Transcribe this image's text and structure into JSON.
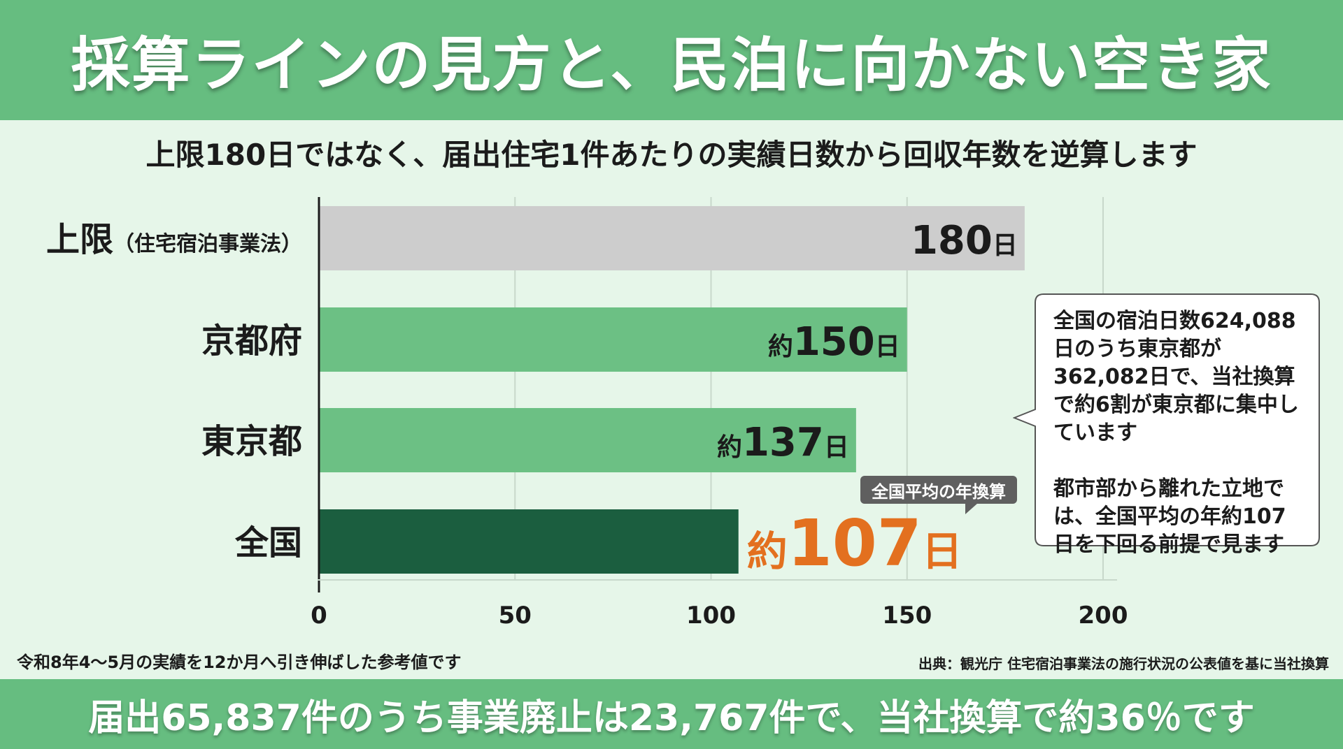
{
  "header": {
    "title": "採算ラインの見方と、民泊に向かない空き家"
  },
  "subtitle": "上限180日ではなく、届出住宅1件あたりの実績日数から回収年数を逆算します",
  "chart_data": {
    "type": "bar",
    "orientation": "horizontal",
    "categories": [
      "上限",
      "京都府",
      "東京都",
      "全国"
    ],
    "category_suffix": [
      "（住宅宿泊事業法）",
      "",
      "",
      ""
    ],
    "values": [
      180,
      150,
      137,
      107
    ],
    "value_prefix": [
      "",
      "約",
      "約",
      "約"
    ],
    "value_unit": "日",
    "xlim": [
      0,
      200
    ],
    "xticks": [
      0,
      50,
      100,
      150,
      200
    ],
    "grid": true,
    "colors": [
      "#cdcdcd",
      "#6cc084",
      "#6cc084",
      "#1b5e3f"
    ],
    "highlight_color": "#e3701f"
  },
  "annotation_tag": "全国平均の年換算",
  "callout": {
    "paragraph1": "全国の宿泊日数624,088日のうち東京都が362,082日で、当社換算で約6割が東京都に集中しています",
    "paragraph2": "都市部から離れた立地では、全国平均の年約107日を下回る前提で見ます"
  },
  "note_left": "令和8年4〜5月の実績を12か月へ引き伸ばした参考値です",
  "source": "出典：観光庁 住宅宿泊事業法の施行状況の公表値を基に当社換算",
  "footer": "届出65,837件のうち事業廃止は23,767件で、当社換算で約36％です"
}
